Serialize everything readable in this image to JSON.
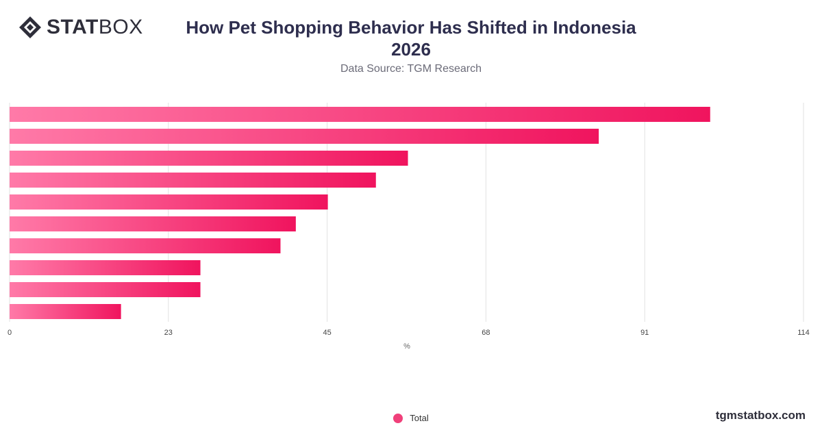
{
  "brand": {
    "logo_icon": "statbox-diamond-icon",
    "bold": "STAT",
    "light": "BOX"
  },
  "header": {
    "title_line1": "How Pet Shopping Behavior Has Shifted in Indonesia",
    "title_line2": "2026",
    "subtitle": "Data Source: TGM Research"
  },
  "colors": {
    "bar_start": "#ff7aa8",
    "bar_end": "#f0145e",
    "grid": "#e2e2e2",
    "text": "#333333"
  },
  "chart_data": {
    "type": "bar",
    "orientation": "horizontal",
    "title": "How Pet Shopping Behavior Has Shifted in Indonesia 2026",
    "subtitle": "Data Source: TGM Research",
    "xlabel": "%",
    "ylabel": "",
    "xlim": [
      0,
      114
    ],
    "xticks": [
      "0",
      "23",
      "45",
      "68",
      "91",
      "114"
    ],
    "xtick_values": [
      0,
      22.8,
      45.6,
      68.4,
      91.2,
      114
    ],
    "categories": [
      "",
      "",
      "",
      "",
      "",
      "",
      "",
      "",
      "",
      ""
    ],
    "series": [
      {
        "name": "Total",
        "values": [
          100.6,
          84.6,
          57.2,
          52.6,
          45.7,
          41.1,
          38.9,
          27.4,
          27.4,
          16.0
        ]
      }
    ],
    "grid": true,
    "legend": "bottom-center"
  },
  "legend": {
    "items": [
      {
        "label": "Total"
      }
    ]
  },
  "footer": {
    "site": "tgmstatbox.com"
  }
}
